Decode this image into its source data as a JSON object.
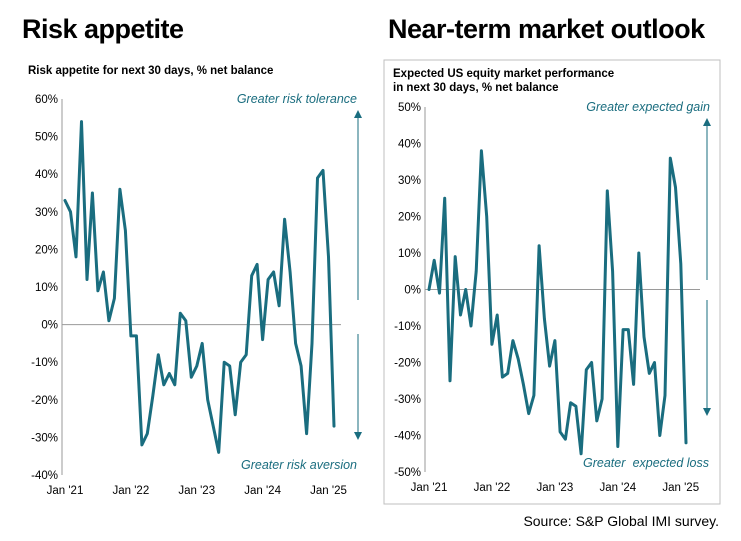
{
  "accent_color": "#1a6d7f",
  "left": {
    "title": "Risk appetite",
    "subtitle": "Risk appetite for next 30 days, % net balance"
  },
  "right": {
    "title": "Near-term market outlook",
    "subtitle_line1": "Expected US equity market performance",
    "subtitle_line2": "in next 30 days, % net balance"
  },
  "source": "Source: S&P Global IMI survey.",
  "chart_data": [
    {
      "type": "line",
      "title": "Risk appetite for next 30 days, % net balance",
      "x_tick_labels": [
        "Jan '21",
        "Jan '22",
        "Jan '23",
        "Jan '24",
        "Jan '25"
      ],
      "x_tick_months": [
        0,
        12,
        24,
        36,
        48
      ],
      "y_tick_labels": [
        "60%",
        "50%",
        "40%",
        "30%",
        "20%",
        "10%",
        "0%",
        "-10%",
        "-20%",
        "-30%",
        "-40%"
      ],
      "ylim": [
        -40,
        60
      ],
      "annotations": {
        "top": "Greater risk tolerance",
        "bottom": "Greater risk aversion"
      },
      "series": [
        {
          "x": [
            0,
            1,
            2,
            3,
            4,
            5,
            6,
            7,
            8,
            9,
            10,
            11,
            12,
            13,
            14,
            15,
            16,
            17,
            18,
            19,
            20,
            21,
            22,
            23,
            24,
            25,
            26,
            27,
            28,
            29,
            30,
            31,
            32,
            33,
            34,
            35,
            36,
            37,
            38,
            39,
            40,
            41,
            42,
            43,
            44,
            45,
            46,
            47,
            48,
            49
          ],
          "values": [
            33,
            30,
            18,
            54,
            12,
            35,
            9,
            14,
            1,
            7,
            36,
            25,
            -3,
            -3,
            -32,
            -29,
            -19,
            -8,
            -16,
            -13,
            -16,
            3,
            1,
            -14,
            -11,
            -5,
            -20,
            -27,
            -34,
            -10,
            -11,
            -24,
            -10,
            -8,
            13,
            16,
            -4,
            12,
            14,
            5,
            28,
            14,
            -5,
            -11,
            -29,
            -5,
            39,
            41,
            18,
            -27
          ]
        }
      ]
    },
    {
      "type": "line",
      "title": "Expected US equity market performance in next 30 days, % net balance",
      "x_tick_labels": [
        "Jan '21",
        "Jan '22",
        "Jan '23",
        "Jan '24",
        "Jan '25"
      ],
      "x_tick_months": [
        0,
        12,
        24,
        36,
        48
      ],
      "y_tick_labels": [
        "50%",
        "40%",
        "30%",
        "20%",
        "10%",
        "0%",
        "-10%",
        "-20%",
        "-30%",
        "-40%",
        "-50%"
      ],
      "ylim": [
        -50,
        50
      ],
      "annotations": {
        "top": "Greater expected gain",
        "bottom_left": "Greater",
        "bottom_right": "expected loss"
      },
      "series": [
        {
          "x": [
            0,
            1,
            2,
            3,
            4,
            5,
            6,
            7,
            8,
            9,
            10,
            11,
            12,
            13,
            14,
            15,
            16,
            17,
            18,
            19,
            20,
            21,
            22,
            23,
            24,
            25,
            26,
            27,
            28,
            29,
            30,
            31,
            32,
            33,
            34,
            35,
            36,
            37,
            38,
            39,
            40,
            41,
            42,
            43,
            44,
            45,
            46,
            47,
            48,
            49
          ],
          "values": [
            0,
            8,
            -1,
            25,
            -25,
            9,
            -7,
            0,
            -10,
            5,
            38,
            20,
            -15,
            -7,
            -24,
            -23,
            -14,
            -19,
            -26,
            -34,
            -29,
            12,
            -8,
            -21,
            -14,
            -39,
            -41,
            -31,
            -32,
            -45,
            -22,
            -20,
            -36,
            -30,
            27,
            5,
            -43,
            -11,
            -11,
            -26,
            10,
            -13,
            -23,
            -20,
            -40,
            -29,
            36,
            28,
            7,
            -42
          ]
        }
      ]
    }
  ]
}
